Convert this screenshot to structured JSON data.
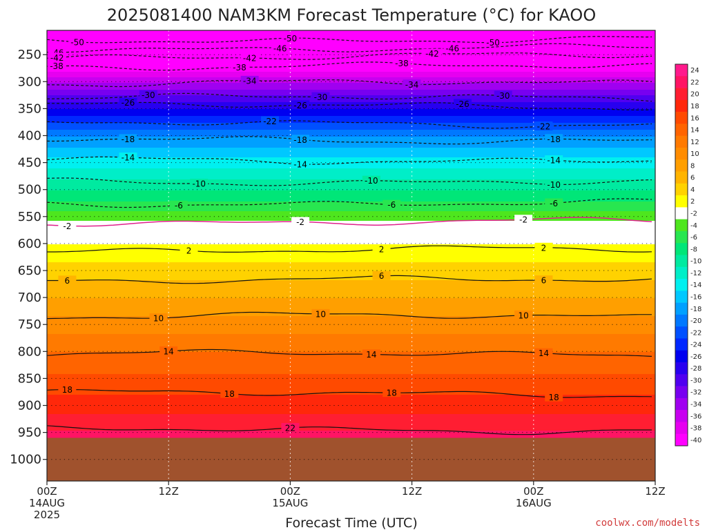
{
  "chart_data": {
    "type": "heatmap",
    "title": "2025081400 NAM3KM Forecast Temperature (°C) for KAOO",
    "xlabel": "Forecast Time (UTC)",
    "ylabel": "",
    "y_axis": {
      "scale": "pressure (hPa, decreasing upward)",
      "ylim": [
        1000,
        200
      ]
    },
    "y_ticks": [
      "250",
      "300",
      "350",
      "400",
      "450",
      "500",
      "550",
      "600",
      "650",
      "700",
      "750",
      "800",
      "850",
      "900",
      "950",
      "1000"
    ],
    "x_ticks": [
      {
        "hour": 0,
        "label": "00Z",
        "sub": "14AUG",
        "sub2": "2025"
      },
      {
        "hour": 12,
        "label": "12Z",
        "sub": "",
        "sub2": ""
      },
      {
        "hour": 24,
        "label": "00Z",
        "sub": "15AUG",
        "sub2": ""
      },
      {
        "hour": 36,
        "label": "12Z",
        "sub": "",
        "sub2": ""
      },
      {
        "hour": 48,
        "label": "00Z",
        "sub": "16AUG",
        "sub2": ""
      },
      {
        "hour": 60,
        "label": "12Z",
        "sub": "",
        "sub2": ""
      }
    ],
    "xlim": [
      0,
      60
    ],
    "surface_pressure_hpa": 960,
    "ground_color": "#a0522d",
    "grid": true,
    "temperature_profile": [
      {
        "p": 200,
        "t": -54
      },
      {
        "p": 250,
        "t": -44
      },
      {
        "p": 300,
        "t": -34
      },
      {
        "p": 350,
        "t": -26
      },
      {
        "p": 400,
        "t": -18
      },
      {
        "p": 450,
        "t": -13
      },
      {
        "p": 500,
        "t": -8
      },
      {
        "p": 550,
        "t": -3
      },
      {
        "p": 580,
        "t": 1
      },
      {
        "p": 600,
        "t": 2
      },
      {
        "p": 650,
        "t": 5
      },
      {
        "p": 700,
        "t": 8
      },
      {
        "p": 750,
        "t": 11
      },
      {
        "p": 800,
        "t": 14
      },
      {
        "p": 850,
        "t": 16.5
      },
      {
        "p": 900,
        "t": 19
      },
      {
        "p": 960,
        "t": 23
      }
    ],
    "colorbar": {
      "levels": [
        "24",
        "22",
        "20",
        "18",
        "16",
        "14",
        "12",
        "10",
        "8",
        "6",
        "4",
        "2",
        "-2",
        "-4",
        "-6",
        "-8",
        "-10",
        "-12",
        "-14",
        "-16",
        "-18",
        "-20",
        "-22",
        "-24",
        "-26",
        "-28",
        "-30",
        "-32",
        "-34",
        "-36",
        "-38",
        "-40"
      ],
      "colors": [
        "#ff1a8c",
        "#ff1464",
        "#ff1e32",
        "#ff280a",
        "#ff4a00",
        "#ff6400",
        "#ff7a00",
        "#ff8c00",
        "#ff9f00",
        "#ffb400",
        "#ffd200",
        "#ffff00",
        "#ffffff",
        "#4ee61e",
        "#28e650",
        "#00e678",
        "#00eaa0",
        "#00eec8",
        "#00f0f0",
        "#00c8ff",
        "#00a0ff",
        "#0078ff",
        "#0050ff",
        "#0028ff",
        "#0000f0",
        "#2800f0",
        "#5000f0",
        "#7800f0",
        "#a000f0",
        "#c800f0",
        "#e600f0",
        "#ff00ff"
      ]
    },
    "contours": [
      {
        "label": "-50",
        "p": 222,
        "dashed": true,
        "label_hours": [
          3,
          24,
          44
        ]
      },
      {
        "label": "-46",
        "p": 238,
        "dashed": true,
        "label_hours": [
          1,
          23,
          40
        ]
      },
      {
        "label": "-42",
        "p": 253,
        "dashed": true,
        "label_hours": [
          1,
          20,
          38
        ]
      },
      {
        "label": "-38",
        "p": 272,
        "dashed": true,
        "label_hours": [
          -2,
          19,
          35
        ]
      },
      {
        "label": "-34",
        "p": 303,
        "dashed": true,
        "label_hours": [
          20,
          36
        ]
      },
      {
        "label": "-30",
        "p": 330,
        "dashed": true,
        "label_hours": [
          10,
          27,
          45
        ]
      },
      {
        "label": "-26",
        "p": 345,
        "dashed": true,
        "label_hours": [
          8,
          25,
          41
        ]
      },
      {
        "label": "-22",
        "p": 378,
        "dashed": true,
        "label_hours": [
          22,
          49
        ]
      },
      {
        "label": "-18",
        "p": 408,
        "dashed": true,
        "label_hours": [
          8,
          25,
          50
        ]
      },
      {
        "label": "-14",
        "p": 445,
        "dashed": true,
        "label_hours": [
          8,
          25,
          50
        ]
      },
      {
        "label": "-10",
        "p": 485,
        "dashed": true,
        "label_hours": [
          15,
          32,
          50
        ]
      },
      {
        "label": "-6",
        "p": 525,
        "dashed": true,
        "label_hours": [
          13,
          34,
          50
        ]
      },
      {
        "label": "-2",
        "p": 560,
        "dashed": false,
        "color": "#e0208c",
        "label_hours": [
          2,
          25,
          47
        ]
      },
      {
        "label": "2",
        "p": 612,
        "dashed": false,
        "label_hours": [
          14,
          33,
          49
        ]
      },
      {
        "label": "6",
        "p": 668,
        "dashed": false,
        "label_hours": [
          2,
          33,
          49
        ]
      },
      {
        "label": "10",
        "p": 735,
        "dashed": false,
        "label_hours": [
          11,
          27,
          47
        ]
      },
      {
        "label": "14",
        "p": 805,
        "dashed": false,
        "label_hours": [
          12,
          32,
          49
        ]
      },
      {
        "label": "18",
        "p": 878,
        "dashed": false,
        "label_hours": [
          2,
          18,
          34,
          50
        ]
      },
      {
        "label": "22",
        "p": 945,
        "dashed": false,
        "label_hours": [
          24
        ]
      }
    ]
  },
  "credit": "coolwx.com/modelts"
}
